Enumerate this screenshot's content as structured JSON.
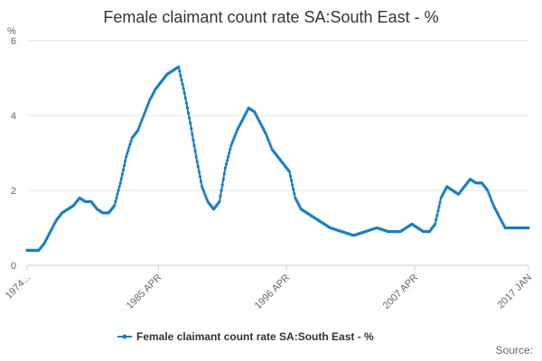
{
  "chart_data": {
    "type": "line",
    "title": "Female claimant count rate SA:South East - %",
    "ylabel": "%",
    "ylim": [
      0,
      6
    ],
    "yticks": [
      "0",
      "2",
      "4",
      "6"
    ],
    "xlim": [
      1974.0,
      2017.0
    ],
    "xticks": [
      {
        "label": "1974...",
        "x": 1974.0
      },
      {
        "label": "1985 APR",
        "x": 1985.25
      },
      {
        "label": "1996 APR",
        "x": 1996.25
      },
      {
        "label": "2007 APR",
        "x": 2007.25
      },
      {
        "label": "2017 JAN",
        "x": 2017.0
      }
    ],
    "grid": true,
    "legend_position": "bottom",
    "credits": "Source:",
    "series": [
      {
        "name": "Female claimant count rate SA:South East - %",
        "color": "#1a7fbf",
        "x": [
          1974.0,
          1975.0,
          1975.5,
          1976.0,
          1976.5,
          1977.0,
          1977.5,
          1978.0,
          1978.5,
          1979.0,
          1979.5,
          1980.0,
          1980.5,
          1981.0,
          1981.5,
          1982.0,
          1982.5,
          1983.0,
          1983.5,
          1984.0,
          1984.5,
          1985.0,
          1985.5,
          1986.0,
          1986.5,
          1987.0,
          1987.5,
          1988.0,
          1988.5,
          1989.0,
          1989.5,
          1990.0,
          1990.5,
          1991.0,
          1991.5,
          1992.0,
          1992.5,
          1993.0,
          1993.5,
          1994.0,
          1994.5,
          1995.0,
          1995.5,
          1996.0,
          1996.5,
          1997.0,
          1997.5,
          1998.0,
          1998.5,
          1999.0,
          2000.0,
          2001.0,
          2002.0,
          2003.0,
          2004.0,
          2005.0,
          2006.0,
          2007.0,
          2007.5,
          2008.0,
          2008.5,
          2009.0,
          2009.5,
          2010.0,
          2010.5,
          2011.0,
          2011.5,
          2012.0,
          2012.5,
          2013.0,
          2013.5,
          2014.0,
          2014.5,
          2015.0,
          2015.5,
          2016.0,
          2016.5,
          2017.0
        ],
        "values": [
          0.4,
          0.4,
          0.6,
          0.9,
          1.2,
          1.4,
          1.5,
          1.6,
          1.8,
          1.7,
          1.7,
          1.5,
          1.4,
          1.4,
          1.6,
          2.2,
          2.9,
          3.4,
          3.6,
          4.0,
          4.4,
          4.7,
          4.9,
          5.1,
          5.2,
          5.3,
          4.6,
          3.8,
          2.9,
          2.1,
          1.7,
          1.5,
          1.7,
          2.6,
          3.2,
          3.6,
          3.9,
          4.2,
          4.1,
          3.8,
          3.5,
          3.1,
          2.9,
          2.7,
          2.5,
          1.8,
          1.5,
          1.4,
          1.3,
          1.2,
          1.0,
          0.9,
          0.8,
          0.9,
          1.0,
          0.9,
          0.9,
          1.1,
          1.0,
          0.9,
          0.9,
          1.1,
          1.8,
          2.1,
          2.0,
          1.9,
          2.1,
          2.3,
          2.2,
          2.2,
          2.0,
          1.6,
          1.3,
          1.0,
          1.0,
          1.0,
          1.0,
          1.0
        ]
      }
    ]
  }
}
